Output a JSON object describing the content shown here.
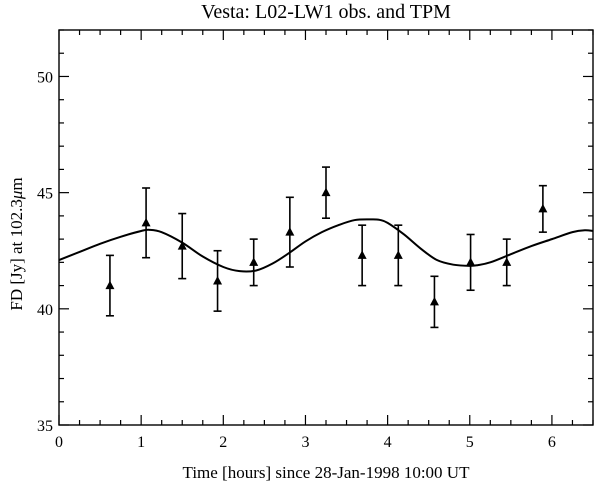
{
  "chart_data": {
    "type": "scatter",
    "title": "Vesta: L02-LW1 obs. and TPM",
    "xlabel": "Time [hours] since 28-Jan-1998 10:00 UT",
    "ylabel_prefix": "FD [Jy] at 102.3",
    "ylabel_unit_mu": "μ",
    "ylabel_unit_suffix": "m",
    "xlim": [
      0,
      6.5
    ],
    "ylim": [
      35,
      52
    ],
    "x_ticks_major": [
      0,
      1,
      2,
      3,
      4,
      5,
      6
    ],
    "x_tick_labels": [
      "0",
      "1",
      "2",
      "3",
      "4",
      "5",
      "6"
    ],
    "x_minor_step": 0.25,
    "y_ticks_major": [
      35,
      40,
      45,
      50
    ],
    "y_tick_labels": [
      "35",
      "40",
      "45",
      "50"
    ],
    "y_minor_step": 1,
    "grid": false,
    "series": [
      {
        "kind": "points-with-errorbars",
        "marker": "triangle",
        "points": [
          {
            "x": 0.62,
            "y": 41.0,
            "err": 1.3
          },
          {
            "x": 1.06,
            "y": 43.7,
            "err": 1.5
          },
          {
            "x": 1.5,
            "y": 42.7,
            "err": 1.4
          },
          {
            "x": 1.93,
            "y": 41.2,
            "err": 1.3
          },
          {
            "x": 2.37,
            "y": 42.0,
            "err": 1.0
          },
          {
            "x": 2.81,
            "y": 43.3,
            "err": 1.5
          },
          {
            "x": 3.25,
            "y": 45.0,
            "err": 1.1
          },
          {
            "x": 3.69,
            "y": 42.3,
            "err": 1.3
          },
          {
            "x": 4.13,
            "y": 42.3,
            "err": 1.3
          },
          {
            "x": 4.57,
            "y": 40.3,
            "err": 1.1
          },
          {
            "x": 5.01,
            "y": 42.0,
            "err": 1.2
          },
          {
            "x": 5.45,
            "y": 42.0,
            "err": 1.0
          },
          {
            "x": 5.89,
            "y": 44.3,
            "err": 1.0
          }
        ]
      },
      {
        "kind": "line",
        "x": [
          0.0,
          0.25,
          0.5,
          0.75,
          1.0,
          1.1,
          1.25,
          1.5,
          1.75,
          2.0,
          2.2,
          2.4,
          2.6,
          2.8,
          3.0,
          3.2,
          3.4,
          3.6,
          3.8,
          3.9,
          4.0,
          4.2,
          4.4,
          4.6,
          4.8,
          5.0,
          5.1,
          5.25,
          5.5,
          5.75,
          6.0,
          6.25,
          6.4,
          6.5
        ],
        "y": [
          42.1,
          42.45,
          42.8,
          43.1,
          43.35,
          43.4,
          43.3,
          42.85,
          42.25,
          41.8,
          41.62,
          41.65,
          41.95,
          42.4,
          42.9,
          43.3,
          43.6,
          43.82,
          43.85,
          43.83,
          43.7,
          43.2,
          42.6,
          42.1,
          41.9,
          41.85,
          41.88,
          42.0,
          42.35,
          42.7,
          43.0,
          43.3,
          43.38,
          43.35
        ]
      }
    ]
  }
}
